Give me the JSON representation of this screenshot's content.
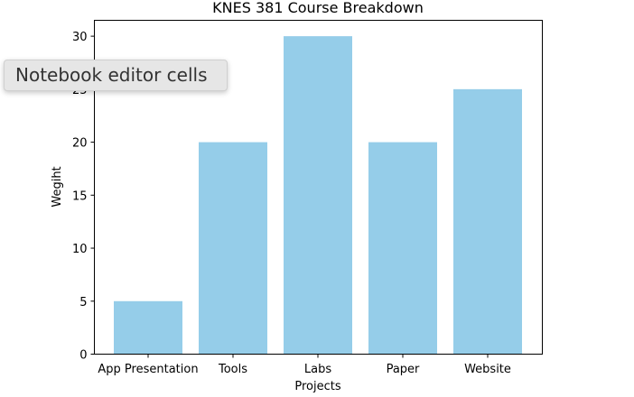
{
  "chart_data": {
    "type": "bar",
    "title": "KNES 381 Course Breakdown",
    "xlabel": "Projects",
    "ylabel": "Wegiht",
    "categories": [
      "App Presentation",
      "Tools",
      "Labs",
      "Paper",
      "Website"
    ],
    "values": [
      5,
      20,
      30,
      20,
      25
    ],
    "ylim": [
      0,
      31.5
    ],
    "yticks": [
      0,
      5,
      10,
      15,
      20,
      25,
      30
    ],
    "bar_color": "#95cde9",
    "grid": false,
    "legend": "none"
  },
  "tooltip": {
    "text": "Notebook editor cells"
  }
}
